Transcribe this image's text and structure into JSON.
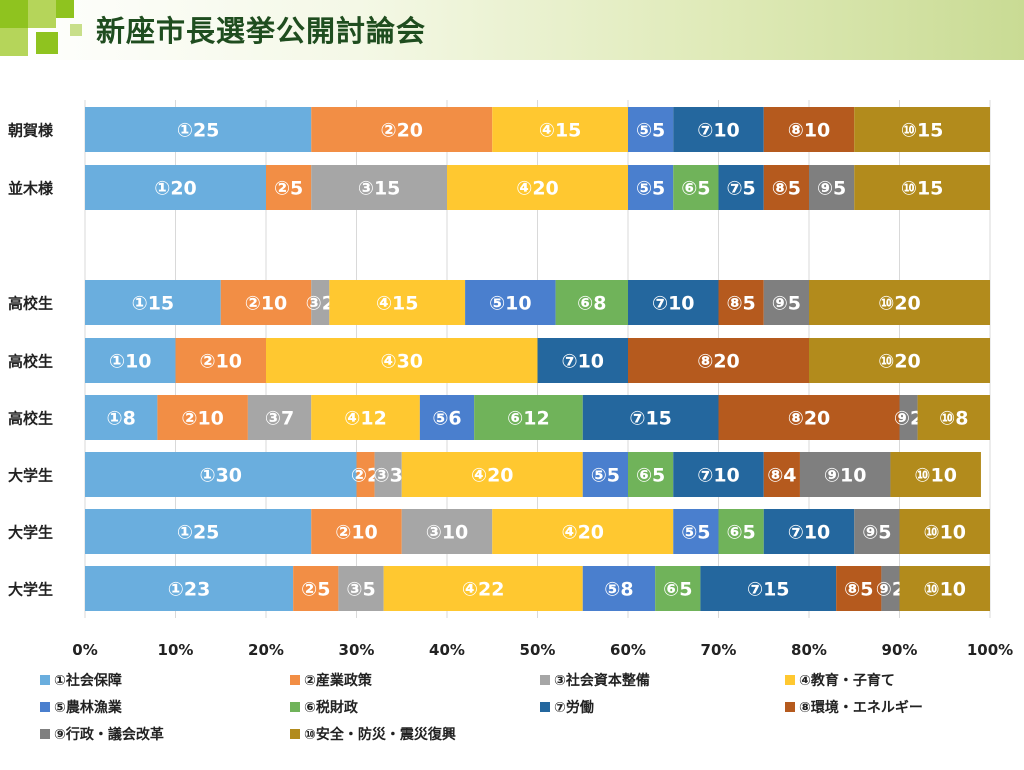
{
  "header": {
    "title": "新座市長選挙公開討論会"
  },
  "chart_data": {
    "type": "bar",
    "orientation": "horizontal-stacked-100",
    "title": "",
    "xlabel": "",
    "ylabel": "",
    "xlim": [
      0,
      100
    ],
    "x_ticks": [
      "0%",
      "10%",
      "20%",
      "30%",
      "40%",
      "50%",
      "60%",
      "70%",
      "80%",
      "90%",
      "100%"
    ],
    "grid": true,
    "legend_position": "bottom",
    "categories": [
      "朝賀様",
      "並木様",
      "高校生",
      "高校生",
      "高校生",
      "大学生",
      "大学生",
      "大学生"
    ],
    "series": [
      {
        "name": "①社会保障",
        "short": "①",
        "color": "#6aaede",
        "values": [
          25,
          20,
          15,
          10,
          8,
          30,
          25,
          23
        ]
      },
      {
        "name": "②産業政策",
        "short": "②",
        "color": "#f28e45",
        "values": [
          20,
          5,
          10,
          10,
          10,
          2,
          10,
          5
        ]
      },
      {
        "name": "③社会資本整備",
        "short": "③",
        "color": "#a6a6a6",
        "values": [
          0,
          15,
          2,
          0,
          7,
          3,
          10,
          5
        ]
      },
      {
        "name": "④教育・子育て",
        "short": "④",
        "color": "#ffc830",
        "values": [
          15,
          20,
          15,
          30,
          12,
          20,
          20,
          22
        ]
      },
      {
        "name": "⑤農林漁業",
        "short": "⑤",
        "color": "#4a7fce",
        "values": [
          5,
          5,
          10,
          0,
          6,
          5,
          5,
          8
        ]
      },
      {
        "name": "⑥税財政",
        "short": "⑥",
        "color": "#70b35a",
        "values": [
          0,
          5,
          8,
          0,
          12,
          5,
          5,
          5
        ]
      },
      {
        "name": "⑦労働",
        "short": "⑦",
        "color": "#24679e",
        "values": [
          10,
          5,
          10,
          10,
          15,
          10,
          10,
          15
        ]
      },
      {
        "name": "⑧環境・エネルギー",
        "short": "⑧",
        "color": "#b55a1e",
        "values": [
          10,
          5,
          5,
          20,
          20,
          4,
          0,
          5
        ]
      },
      {
        "name": "⑨行政・議会改革",
        "short": "⑨",
        "color": "#7f7f7f",
        "values": [
          0,
          5,
          5,
          0,
          2,
          10,
          5,
          2
        ]
      },
      {
        "name": "⑩安全・防災・震災復興",
        "short": "⑩",
        "color": "#b28b1c",
        "values": [
          15,
          15,
          20,
          20,
          8,
          10,
          10,
          10
        ]
      }
    ]
  }
}
